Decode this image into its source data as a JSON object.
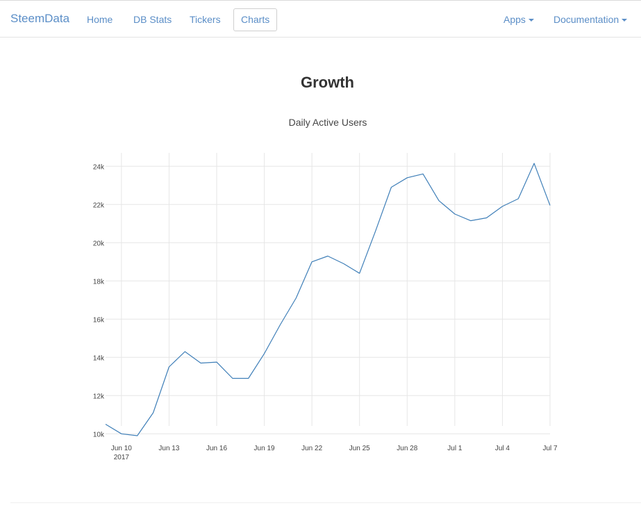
{
  "navbar": {
    "brand": "SteemData",
    "links": [
      "Home",
      "DB Stats",
      "Tickers",
      "Charts"
    ],
    "active": "Charts",
    "right_links": [
      {
        "label": "Apps",
        "dropdown": true
      },
      {
        "label": "Documentation",
        "dropdown": true
      }
    ]
  },
  "page": {
    "title": "Growth"
  },
  "colors": {
    "link": "#5b8ec7",
    "line": "#3f7fb8",
    "grid": "#e6e6e6"
  },
  "chart_data": {
    "type": "line",
    "title": "Daily Active Users",
    "xlabel": "",
    "ylabel": "",
    "x": [
      "2017-06-09",
      "2017-06-10",
      "2017-06-11",
      "2017-06-12",
      "2017-06-13",
      "2017-06-14",
      "2017-06-15",
      "2017-06-16",
      "2017-06-17",
      "2017-06-18",
      "2017-06-19",
      "2017-06-20",
      "2017-06-21",
      "2017-06-22",
      "2017-06-23",
      "2017-06-24",
      "2017-06-25",
      "2017-06-26",
      "2017-06-27",
      "2017-06-28",
      "2017-06-29",
      "2017-06-30",
      "2017-07-01",
      "2017-07-02",
      "2017-07-03",
      "2017-07-04",
      "2017-07-05",
      "2017-07-06",
      "2017-07-07"
    ],
    "series": [
      {
        "values": [
          10500,
          10000,
          9900,
          11100,
          13500,
          14300,
          13700,
          13750,
          12900,
          12900,
          14200,
          15700,
          17100,
          19000,
          19300,
          18900,
          18400,
          20600,
          22900,
          23400,
          23600,
          22200,
          21500,
          21150,
          21300,
          21900,
          22300,
          24150,
          21950
        ]
      }
    ],
    "ylim": [
      9900,
      24700
    ],
    "yticks": [
      10000,
      12000,
      14000,
      16000,
      18000,
      20000,
      22000,
      24000
    ],
    "ytick_labels": [
      "10k",
      "12k",
      "14k",
      "16k",
      "18k",
      "20k",
      "22k",
      "24k"
    ],
    "xticks": [
      "2017-06-10",
      "2017-06-13",
      "2017-06-16",
      "2017-06-19",
      "2017-06-22",
      "2017-06-25",
      "2017-06-28",
      "2017-07-01",
      "2017-07-04",
      "2017-07-07"
    ],
    "xtick_labels": [
      "Jun 10",
      "Jun 13",
      "Jun 16",
      "Jun 19",
      "Jun 22",
      "Jun 25",
      "Jun 28",
      "Jul 1",
      "Jul 4",
      "Jul 7"
    ],
    "xtick_sublabel": "2017",
    "grid": true,
    "legend": false
  }
}
